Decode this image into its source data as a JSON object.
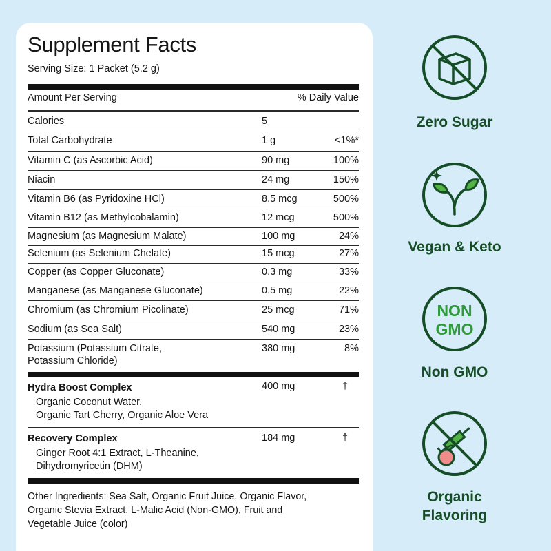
{
  "panel": {
    "title": "Supplement Facts",
    "serving_size": "Serving Size: 1 Packet (5.2 g)",
    "header": {
      "amount": "Amount Per Serving",
      "dv": "% Daily Value"
    },
    "rows": [
      {
        "name": "Calories",
        "amount": "5",
        "dv": ""
      },
      {
        "name": "Total Carbohydrate",
        "amount": "1 g",
        "dv": "<1%*"
      },
      {
        "name": "Vitamin C (as Ascorbic Acid)",
        "amount": "90 mg",
        "dv": "100%"
      },
      {
        "name": "Niacin",
        "amount": "24 mg",
        "dv": "150%"
      },
      {
        "name": "Vitamin B6  (as Pyridoxine HCl)",
        "amount": "8.5 mcg",
        "dv": "500%"
      },
      {
        "name": "Vitamin B12 (as Methylcobalamin)",
        "amount": "12 mcg",
        "dv": "500%"
      },
      {
        "name": "Magnesium (as Magnesium Malate)",
        "amount": "100 mg",
        "dv": "24%"
      },
      {
        "name": "Selenium (as Selenium Chelate)",
        "amount": "15 mcg",
        "dv": "27%"
      },
      {
        "name": "Copper (as Copper Gluconate)",
        "amount": "0.3 mg",
        "dv": "33%"
      },
      {
        "name": "Manganese (as Manganese Gluconate)",
        "amount": "0.5 mg",
        "dv": "22%"
      },
      {
        "name": "Chromium (as Chromium Picolinate)",
        "amount": "25 mcg",
        "dv": "71%"
      },
      {
        "name": "Sodium (as Sea Salt)",
        "amount": "540 mg",
        "dv": "23%"
      },
      {
        "name_line1": "Potassium (Potassium Citrate,",
        "name_line2": "Potassium Chloride)",
        "amount": "380 mg",
        "dv": "8%"
      }
    ],
    "blends": [
      {
        "name": "Hydra Boost Complex",
        "amount": "400 mg",
        "dv": "†",
        "ingredients_line1": "Organic Coconut Water,",
        "ingredients_line2": "Organic Tart Cherry, Organic Aloe Vera"
      },
      {
        "name": "Recovery Complex",
        "amount": "184 mg",
        "dv": "†",
        "ingredients_line1": "Ginger Root 4:1 Extract, L-Theanine,",
        "ingredients_line2": "Dihydromyricetin (DHM)"
      }
    ],
    "other_ingredients": [
      "Other Ingredients: Sea Salt, Organic Fruit Juice, Organic Flavor,",
      "Organic Stevia Extract, L-Malic Acid (Non-GMO), Fruit and",
      "Vegetable Juice (color)"
    ]
  },
  "badges": [
    {
      "label": "Zero Sugar",
      "icon": "no-sugar-cube-icon"
    },
    {
      "label": "Vegan & Keto",
      "icon": "sprout-icon"
    },
    {
      "label": "Non GMO",
      "icon": "non-gmo-icon",
      "icon_text_1": "NON",
      "icon_text_2": "GMO"
    },
    {
      "label_line1": "Organic",
      "label_line2": "Flavoring",
      "icon": "no-syringe-peach-icon"
    }
  ],
  "colors": {
    "background": "#d6ecf9",
    "panel": "#ffffff",
    "badge_green": "#154d26",
    "leaf_green": "#54b345",
    "peach": "#f28c8c"
  }
}
